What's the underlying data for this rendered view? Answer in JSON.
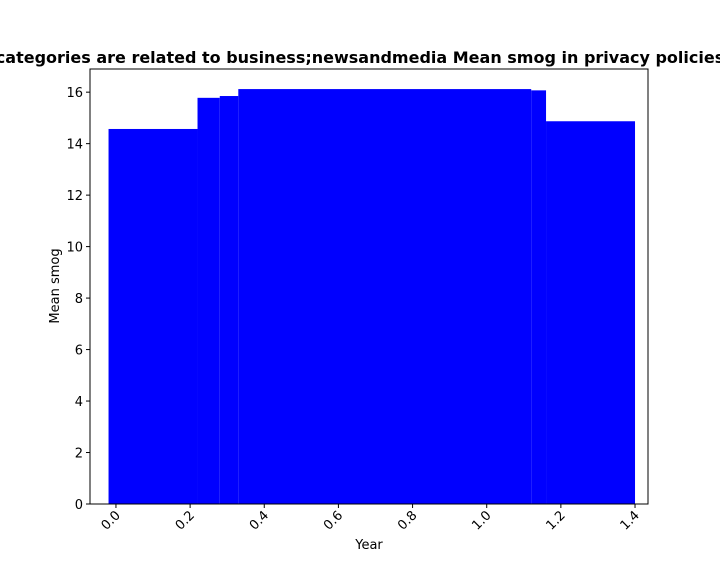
{
  "chart_data": {
    "type": "bar",
    "title": "categories are related to business;newsandmedia Mean smog in privacy policies",
    "xlabel": "Year",
    "ylabel": "Mean smog",
    "xlim": [
      -0.07,
      1.435
    ],
    "ylim": [
      0,
      16.9
    ],
    "x_ticks": [
      0.0,
      0.2,
      0.4,
      0.6,
      0.8,
      1.0,
      1.2,
      1.4
    ],
    "x_tick_labels": [
      "0.0",
      "0.2",
      "0.4",
      "0.6",
      "0.8",
      "1.0",
      "1.2",
      "1.4"
    ],
    "y_ticks": [
      0,
      2,
      4,
      6,
      8,
      10,
      12,
      14,
      16
    ],
    "y_tick_labels": [
      "0",
      "2",
      "4",
      "6",
      "8",
      "10",
      "12",
      "14",
      "16"
    ],
    "bar_color": "#0000ff",
    "grid": false,
    "bars": [
      {
        "x_start": -0.02,
        "x_end": 0.22,
        "value": 14.57
      },
      {
        "x_start": 0.22,
        "x_end": 0.28,
        "value": 15.78
      },
      {
        "x_start": 0.28,
        "x_end": 0.33,
        "value": 15.85
      },
      {
        "x_start": 0.33,
        "x_end": 1.12,
        "value": 16.12
      },
      {
        "x_start": 1.12,
        "x_end": 1.16,
        "value": 16.07
      },
      {
        "x_start": 1.16,
        "x_end": 1.4,
        "value": 14.87
      }
    ]
  }
}
